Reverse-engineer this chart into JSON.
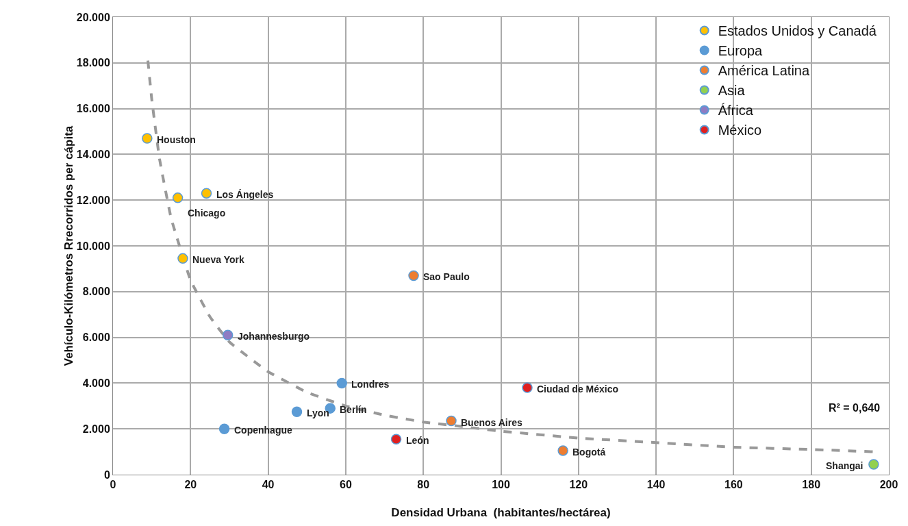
{
  "chart_data": {
    "type": "scatter",
    "xlabel": "Densidad Urbana  (habitantes/hectárea)",
    "ylabel": "Vehículo-Kilómetros Rrecorridos per cápita",
    "xlim": [
      0,
      200
    ],
    "xticks": [
      0,
      20,
      40,
      60,
      80,
      100,
      120,
      140,
      160,
      180,
      200
    ],
    "ylim": [
      0,
      20000
    ],
    "yticks": [
      {
        "value": 0,
        "label": "0"
      },
      {
        "value": 2000,
        "label": "2.000"
      },
      {
        "value": 4000,
        "label": "4.000"
      },
      {
        "value": 6000,
        "label": "6.000"
      },
      {
        "value": 8000,
        "label": "8.000"
      },
      {
        "value": 10000,
        "label": "10.000"
      },
      {
        "value": 12000,
        "label": "12.000"
      },
      {
        "value": 14000,
        "label": "14.000"
      },
      {
        "value": 16000,
        "label": "16.000"
      },
      {
        "value": 18000,
        "label": "18.000"
      },
      {
        "value": 20000,
        "label": "20.000"
      }
    ],
    "grid": true,
    "legend": "top right",
    "marker": "circle",
    "series": [
      {
        "name": "Estados Unidos y Canadá",
        "color": "#ffc000",
        "x": [
          8.8,
          16.7,
          24.1,
          18.0
        ],
        "values": [
          14700,
          12100,
          12300,
          9450
        ]
      },
      {
        "name": "Europa",
        "color": "#5b9bd5",
        "x": [
          59.0,
          56.0,
          47.4,
          28.7
        ],
        "values": [
          4000,
          2900,
          2750,
          2000
        ]
      },
      {
        "name": "América Latina",
        "color": "#ed7d31",
        "x": [
          77.5,
          87.2,
          116.0
        ],
        "values": [
          8700,
          2350,
          1050
        ]
      },
      {
        "name": "Asia",
        "color": "#92d050",
        "x": [
          196.1
        ],
        "values": [
          450
        ]
      },
      {
        "name": "África",
        "color": "#8e7cc3",
        "x": [
          29.6
        ],
        "values": [
          6100
        ]
      },
      {
        "name": "México",
        "color": "#e02020",
        "x": [
          73.0,
          106.8
        ],
        "values": [
          1550,
          3800
        ]
      },
      {
        "type": "line",
        "color": "#999999",
        "line_style": "dashed",
        "marker": "none",
        "x": [
          9,
          10,
          12,
          15,
          20,
          25,
          30,
          40,
          50,
          60,
          70,
          80,
          90,
          100,
          120,
          140,
          160,
          180,
          196
        ],
        "values": [
          18100,
          16400,
          13800,
          11200,
          8500,
          6900,
          5800,
          4500,
          3600,
          3000,
          2600,
          2300,
          2100,
          1900,
          1600,
          1400,
          1200,
          1100,
          1000
        ]
      }
    ],
    "annotations": [
      {
        "text": "Houston",
        "x": 8.8,
        "y": 14700
      },
      {
        "text": "Los Ángeles",
        "x": 24.1,
        "y": 12300
      },
      {
        "text": "Chicago",
        "x": 16.7,
        "y": 12100
      },
      {
        "text": "Nueva York",
        "x": 18.0,
        "y": 9450
      },
      {
        "text": "Johannesburgo",
        "x": 29.6,
        "y": 6100
      },
      {
        "text": "Londres",
        "x": 59.0,
        "y": 4000
      },
      {
        "text": "Berlín",
        "x": 56.0,
        "y": 2900
      },
      {
        "text": "Lyon",
        "x": 47.4,
        "y": 2750
      },
      {
        "text": "Copenhague",
        "x": 28.7,
        "y": 2000
      },
      {
        "text": "Sao Paulo",
        "x": 77.5,
        "y": 8700
      },
      {
        "text": "Buenos Aires",
        "x": 87.2,
        "y": 2350
      },
      {
        "text": "León",
        "x": 73.0,
        "y": 1550
      },
      {
        "text": "Ciudad de México",
        "x": 106.8,
        "y": 3800
      },
      {
        "text": "Bogotá",
        "x": 116.0,
        "y": 1050
      },
      {
        "text": "Shangai",
        "x": 196.1,
        "y": 450
      },
      "R² = 0,640"
    ]
  }
}
